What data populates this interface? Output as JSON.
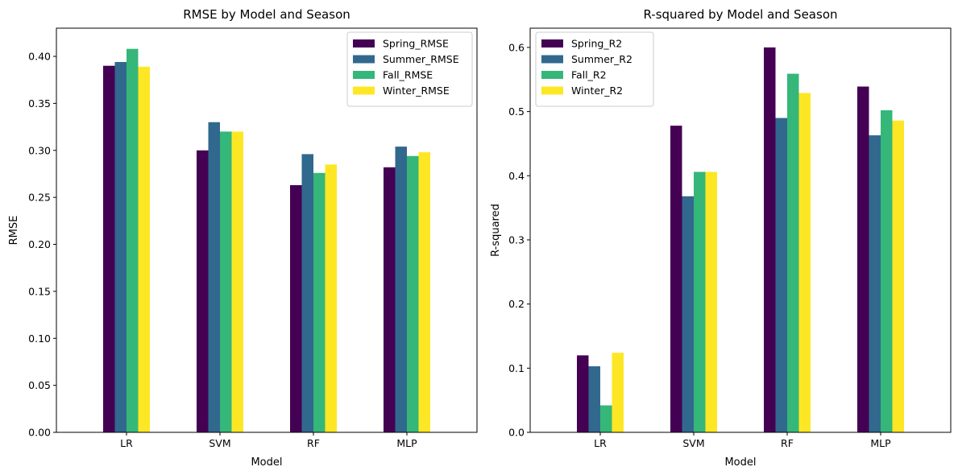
{
  "chart_data": [
    {
      "type": "bar",
      "title": "RMSE by Model and Season",
      "xlabel": "Model",
      "ylabel": "RMSE",
      "categories": [
        "LR",
        "SVM",
        "RF",
        "MLP"
      ],
      "ylim": [
        0,
        0.43
      ],
      "yticks": [
        "0.00",
        "0.05",
        "0.10",
        "0.15",
        "0.20",
        "0.25",
        "0.30",
        "0.35",
        "0.40"
      ],
      "legend_position": "top-right",
      "grid": false,
      "series": [
        {
          "name": "Spring_RMSE",
          "color": "#440154",
          "values": [
            0.39,
            0.3,
            0.263,
            0.282
          ]
        },
        {
          "name": "Summer_RMSE",
          "color": "#31688e",
          "values": [
            0.394,
            0.33,
            0.296,
            0.304
          ]
        },
        {
          "name": "Fall_RMSE",
          "color": "#35b779",
          "values": [
            0.408,
            0.32,
            0.276,
            0.294
          ]
        },
        {
          "name": "Winter_RMSE",
          "color": "#fde725",
          "values": [
            0.389,
            0.32,
            0.285,
            0.298
          ]
        }
      ]
    },
    {
      "type": "bar",
      "title": "R-squared by Model and Season",
      "xlabel": "Model",
      "ylabel": "R-squared",
      "categories": [
        "LR",
        "SVM",
        "RF",
        "MLP"
      ],
      "ylim": [
        0,
        0.63
      ],
      "yticks": [
        "0.0",
        "0.1",
        "0.2",
        "0.3",
        "0.4",
        "0.5",
        "0.6"
      ],
      "legend_position": "top-left",
      "grid": false,
      "series": [
        {
          "name": "Spring_R2",
          "color": "#440154",
          "values": [
            0.12,
            0.478,
            0.6,
            0.539
          ]
        },
        {
          "name": "Summer_R2",
          "color": "#31688e",
          "values": [
            0.103,
            0.368,
            0.49,
            0.463
          ]
        },
        {
          "name": "Fall_R2",
          "color": "#35b779",
          "values": [
            0.042,
            0.406,
            0.559,
            0.502
          ]
        },
        {
          "name": "Winter_R2",
          "color": "#fde725",
          "values": [
            0.124,
            0.406,
            0.529,
            0.486
          ]
        }
      ]
    }
  ]
}
